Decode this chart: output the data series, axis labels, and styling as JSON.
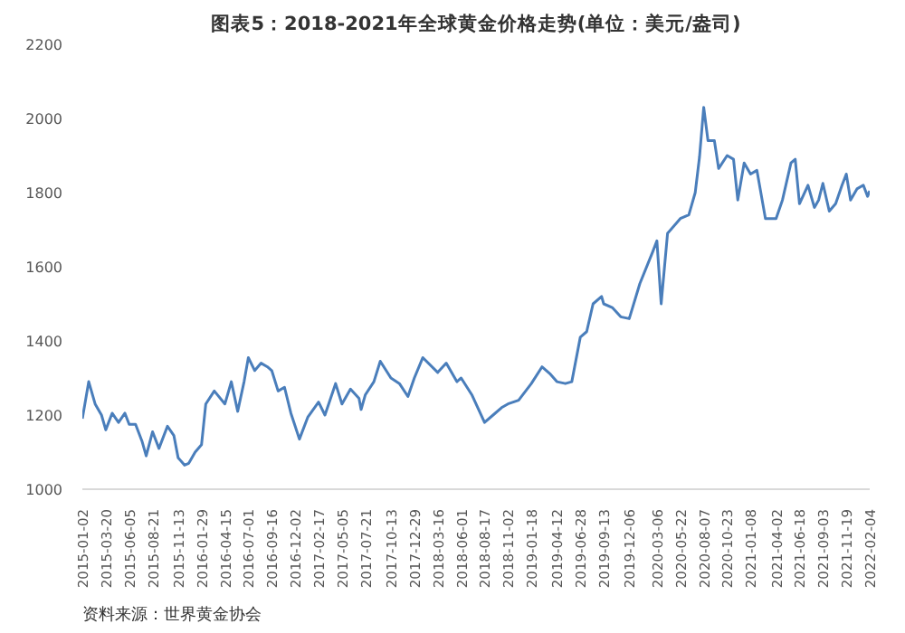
{
  "chart_data": {
    "type": "line",
    "title": "图表5：2018-2021年全球黄金价格走势(单位：美元/盎司)",
    "annotations": [
      "资料来源：世界黄金协会"
    ],
    "x": [
      "2015-01-02",
      "2015-01-23",
      "2015-02-13",
      "2015-03-06",
      "2015-03-20",
      "2015-04-10",
      "2015-05-01",
      "2015-05-22",
      "2015-06-05",
      "2015-06-26",
      "2015-07-17",
      "2015-07-31",
      "2015-08-21",
      "2015-09-11",
      "2015-10-09",
      "2015-10-30",
      "2015-11-13",
      "2015-12-04",
      "2015-12-18",
      "2016-01-08",
      "2016-01-29",
      "2016-02-12",
      "2016-03-11",
      "2016-04-15",
      "2016-05-06",
      "2016-05-27",
      "2016-06-17",
      "2016-07-01",
      "2016-07-22",
      "2016-08-12",
      "2016-09-02",
      "2016-09-16",
      "2016-10-07",
      "2016-10-28",
      "2016-11-18",
      "2016-12-02",
      "2016-12-16",
      "2017-01-13",
      "2017-02-17",
      "2017-03-10",
      "2017-04-14",
      "2017-05-05",
      "2017-06-02",
      "2017-06-30",
      "2017-07-07",
      "2017-07-21",
      "2017-08-18",
      "2017-09-08",
      "2017-10-13",
      "2017-11-10",
      "2017-12-08",
      "2017-12-29",
      "2018-01-26",
      "2018-03-16",
      "2018-04-13",
      "2018-05-18",
      "2018-06-01",
      "2018-07-06",
      "2018-08-17",
      "2018-09-14",
      "2018-10-12",
      "2018-11-02",
      "2018-12-07",
      "2019-01-18",
      "2019-02-22",
      "2019-03-22",
      "2019-04-12",
      "2019-05-10",
      "2019-05-31",
      "2019-06-28",
      "2019-07-19",
      "2019-08-09",
      "2019-09-06",
      "2019-09-13",
      "2019-10-11",
      "2019-11-08",
      "2019-12-06",
      "2020-01-10",
      "2020-02-21",
      "2020-03-06",
      "2020-03-20",
      "2020-04-10",
      "2020-05-22",
      "2020-06-19",
      "2020-07-10",
      "2020-07-24",
      "2020-08-07",
      "2020-08-21",
      "2020-09-11",
      "2020-09-25",
      "2020-10-23",
      "2020-11-13",
      "2020-11-27",
      "2020-12-18",
      "2021-01-08",
      "2021-01-29",
      "2021-02-26",
      "2021-03-26",
      "2021-04-02",
      "2021-04-23",
      "2021-05-21",
      "2021-06-04",
      "2021-06-18",
      "2021-07-16",
      "2021-08-06",
      "2021-08-20",
      "2021-09-03",
      "2021-09-24",
      "2021-10-15",
      "2021-11-05",
      "2021-11-19",
      "2021-12-03",
      "2021-12-24",
      "2022-01-14",
      "2022-01-28",
      "2022-02-04"
    ],
    "series": [
      {
        "color": "#4a7ebb",
        "values": [
          1190,
          1290,
          1230,
          1200,
          1160,
          1205,
          1180,
          1205,
          1175,
          1175,
          1130,
          1090,
          1155,
          1110,
          1170,
          1145,
          1085,
          1065,
          1070,
          1100,
          1120,
          1230,
          1265,
          1230,
          1290,
          1210,
          1290,
          1355,
          1320,
          1340,
          1330,
          1320,
          1265,
          1275,
          1205,
          1170,
          1135,
          1195,
          1235,
          1200,
          1285,
          1230,
          1270,
          1245,
          1215,
          1255,
          1290,
          1345,
          1300,
          1285,
          1250,
          1300,
          1355,
          1315,
          1340,
          1290,
          1300,
          1255,
          1180,
          1200,
          1220,
          1230,
          1240,
          1285,
          1330,
          1310,
          1290,
          1285,
          1290,
          1410,
          1425,
          1500,
          1520,
          1500,
          1490,
          1465,
          1460,
          1555,
          1640,
          1670,
          1500,
          1690,
          1730,
          1740,
          1800,
          1895,
          2030,
          1940,
          1940,
          1865,
          1900,
          1890,
          1780,
          1880,
          1850,
          1860,
          1730,
          1730,
          1730,
          1780,
          1880,
          1890,
          1770,
          1820,
          1760,
          1780,
          1825,
          1750,
          1770,
          1820,
          1850,
          1780,
          1810,
          1820,
          1790,
          1805
        ]
      }
    ],
    "xlim": [
      "2015-01-02",
      "2022-02-04"
    ],
    "xticks": [
      "2015-01-02",
      "2015-03-20",
      "2015-06-05",
      "2015-08-21",
      "2015-11-13",
      "2016-01-29",
      "2016-04-15",
      "2016-07-01",
      "2016-09-16",
      "2016-12-02",
      "2017-02-17",
      "2017-05-05",
      "2017-07-21",
      "2017-10-13",
      "2017-12-29",
      "2018-03-16",
      "2018-06-01",
      "2018-08-17",
      "2018-11-02",
      "2019-01-18",
      "2019-04-12",
      "2019-06-28",
      "2019-09-13",
      "2019-12-06",
      "2020-03-06",
      "2020-05-22",
      "2020-08-07",
      "2020-10-23",
      "2021-01-08",
      "2021-04-02",
      "2021-06-18",
      "2021-09-03",
      "2021-11-19",
      "2022-02-04"
    ],
    "ylim": [
      1000,
      2200
    ],
    "yticks": [
      1000,
      1200,
      1400,
      1600,
      1800,
      2000,
      2200
    ],
    "grid": false,
    "line_style": "solid"
  }
}
